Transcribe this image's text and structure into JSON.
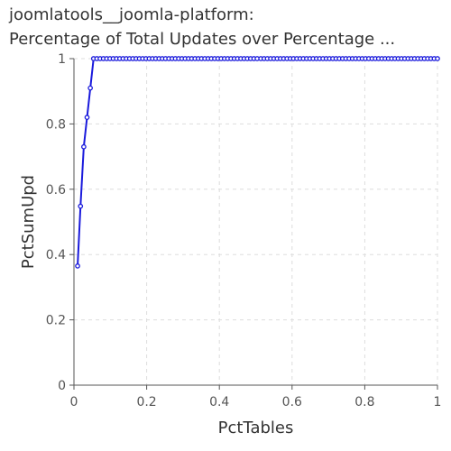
{
  "chart_data": {
    "type": "line",
    "title_lines": [
      "joomlatools__joomla-platform:",
      "Percentage of Total Updates over Percentage ..."
    ],
    "xlabel": "PctTables",
    "ylabel": "PctSumUpd",
    "xlim": [
      0,
      1
    ],
    "ylim": [
      0,
      1
    ],
    "x_ticks": [
      "0",
      "0.2",
      "0.4",
      "0.6",
      "0.8",
      "1"
    ],
    "y_ticks": [
      "0",
      "0.2",
      "0.4",
      "0.6",
      "0.8",
      "1"
    ],
    "grid": true,
    "legend": "none",
    "series": [
      {
        "color": "#1a1adc",
        "x": [
          0.01,
          0.018,
          0.027,
          0.036,
          0.045,
          0.054,
          0.063,
          0.072,
          0.081,
          0.09,
          0.099,
          0.108,
          0.117,
          0.126,
          0.135,
          0.144,
          0.153,
          0.162,
          0.171,
          0.18,
          0.189,
          0.198,
          0.207,
          0.216,
          0.225,
          0.234,
          0.243,
          0.252,
          0.261,
          0.27,
          0.279,
          0.288,
          0.297,
          0.306,
          0.315,
          0.324,
          0.333,
          0.342,
          0.351,
          0.36,
          0.369,
          0.378,
          0.387,
          0.396,
          0.405,
          0.414,
          0.423,
          0.432,
          0.441,
          0.45,
          0.459,
          0.468,
          0.477,
          0.486,
          0.495,
          0.504,
          0.514,
          0.523,
          0.532,
          0.541,
          0.55,
          0.559,
          0.568,
          0.577,
          0.586,
          0.595,
          0.604,
          0.613,
          0.622,
          0.631,
          0.64,
          0.649,
          0.658,
          0.667,
          0.676,
          0.685,
          0.694,
          0.703,
          0.712,
          0.721,
          0.73,
          0.739,
          0.748,
          0.757,
          0.766,
          0.775,
          0.784,
          0.793,
          0.802,
          0.811,
          0.82,
          0.829,
          0.838,
          0.847,
          0.856,
          0.865,
          0.874,
          0.883,
          0.892,
          0.901,
          0.91,
          0.919,
          0.928,
          0.937,
          0.946,
          0.955,
          0.964,
          0.973,
          0.982,
          0.991,
          1.0
        ],
        "y": [
          0.365,
          0.548,
          0.73,
          0.82,
          0.91,
          1,
          1,
          1,
          1,
          1,
          1,
          1,
          1,
          1,
          1,
          1,
          1,
          1,
          1,
          1,
          1,
          1,
          1,
          1,
          1,
          1,
          1,
          1,
          1,
          1,
          1,
          1,
          1,
          1,
          1,
          1,
          1,
          1,
          1,
          1,
          1,
          1,
          1,
          1,
          1,
          1,
          1,
          1,
          1,
          1,
          1,
          1,
          1,
          1,
          1,
          1,
          1,
          1,
          1,
          1,
          1,
          1,
          1,
          1,
          1,
          1,
          1,
          1,
          1,
          1,
          1,
          1,
          1,
          1,
          1,
          1,
          1,
          1,
          1,
          1,
          1,
          1,
          1,
          1,
          1,
          1,
          1,
          1,
          1,
          1,
          1,
          1,
          1,
          1,
          1,
          1,
          1,
          1,
          1,
          1,
          1,
          1,
          1,
          1,
          1,
          1,
          1,
          1,
          1,
          1,
          1
        ]
      }
    ]
  }
}
